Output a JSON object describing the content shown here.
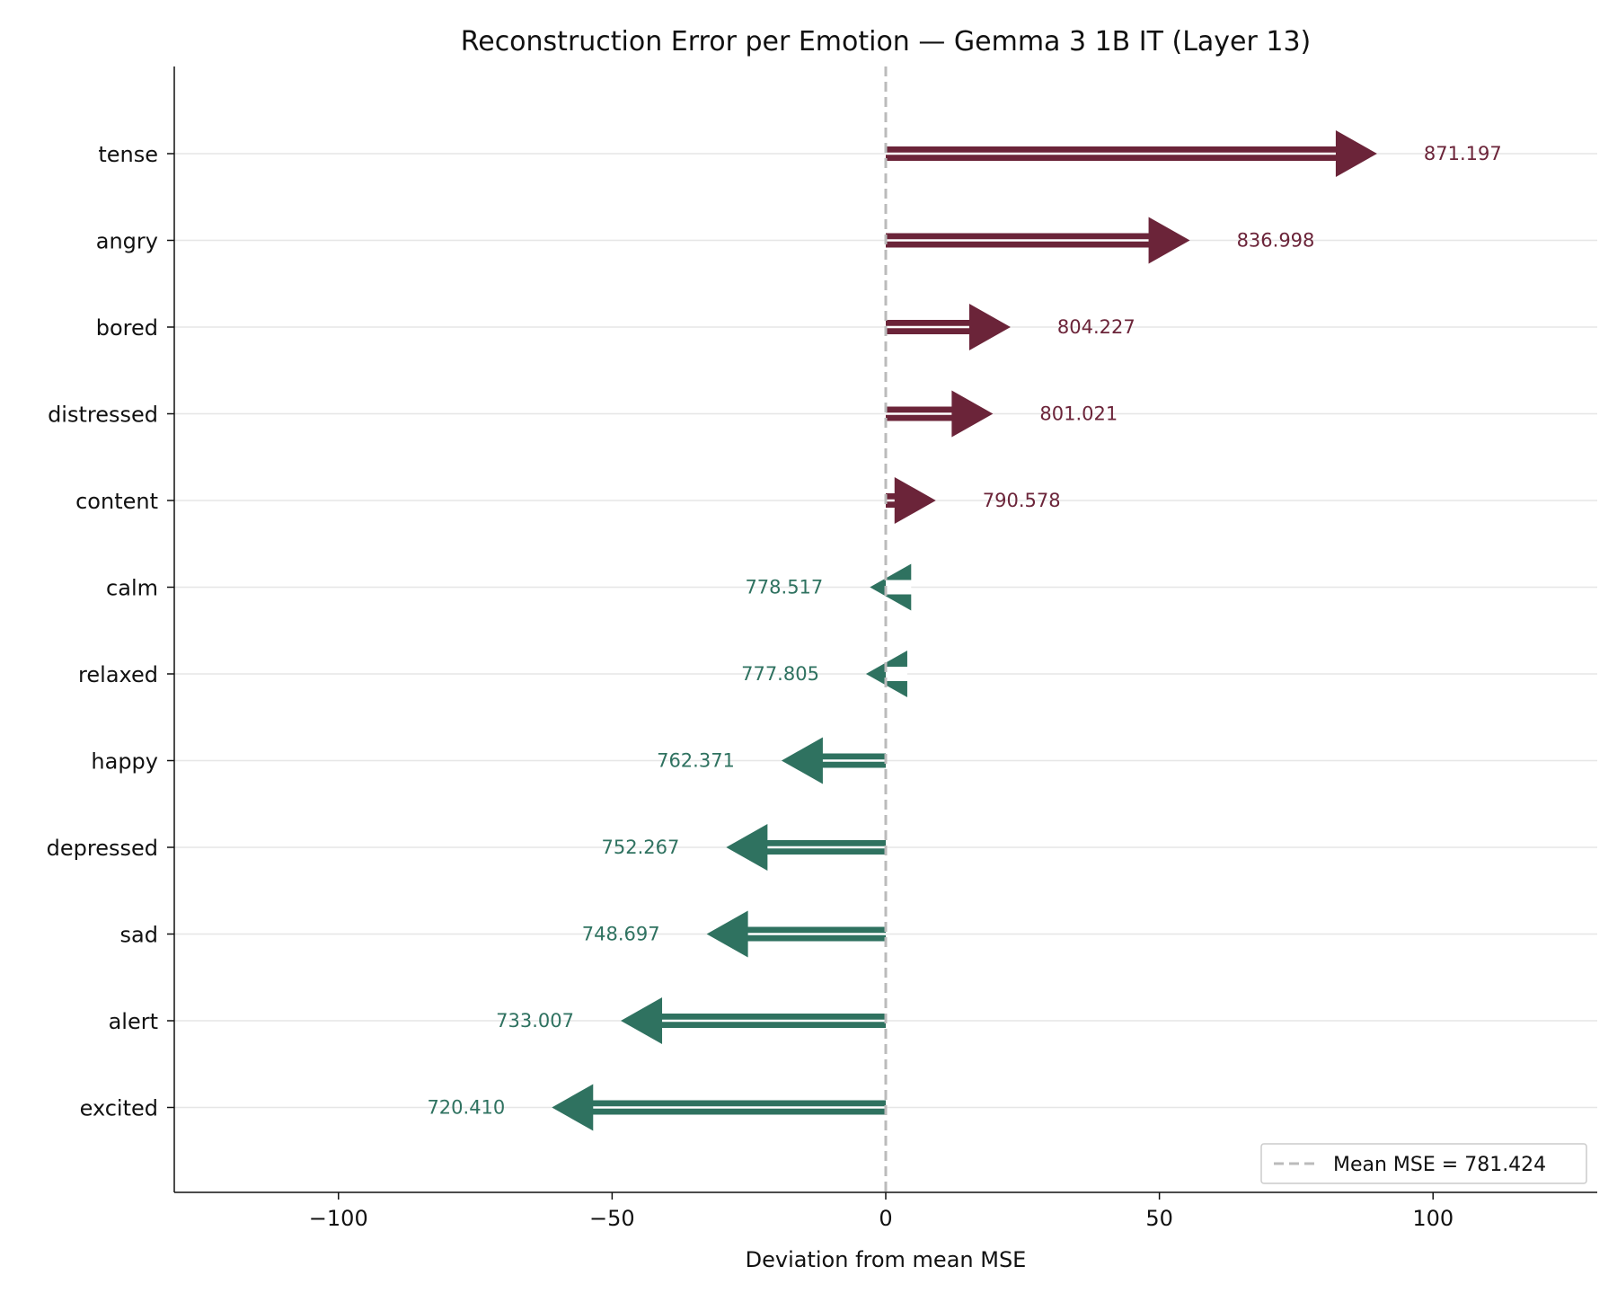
{
  "chart_data": {
    "type": "bar",
    "title": "Reconstruction Error per Emotion — Gemma 3 1B IT (Layer 13)",
    "xlabel": "Deviation from mean MSE",
    "ylabel": "",
    "xlim": [
      -130,
      130
    ],
    "xticks": [
      -100,
      -50,
      0,
      50,
      100
    ],
    "xtick_labels": [
      "−100",
      "−50",
      "0",
      "50",
      "100"
    ],
    "mean_mse": 781.424,
    "legend": {
      "label": "Mean MSE = 781.424",
      "placement": "lower-right"
    },
    "colors": {
      "above": "#6b2439",
      "below": "#2f7260",
      "mean_line": "#bbbbbb",
      "grid": "#e6e6e6"
    },
    "categories": [
      "tense",
      "angry",
      "bored",
      "distressed",
      "content",
      "calm",
      "relaxed",
      "happy",
      "depressed",
      "sad",
      "alert",
      "excited"
    ],
    "values": [
      871.197,
      836.998,
      804.227,
      801.021,
      790.578,
      778.517,
      777.805,
      762.371,
      752.267,
      748.697,
      733.007,
      720.41
    ],
    "value_labels": [
      "871.197",
      "836.998",
      "804.227",
      "801.021",
      "790.578",
      "778.517",
      "777.805",
      "762.371",
      "752.267",
      "748.697",
      "733.007",
      "720.410"
    ],
    "grid": "horizontal"
  }
}
